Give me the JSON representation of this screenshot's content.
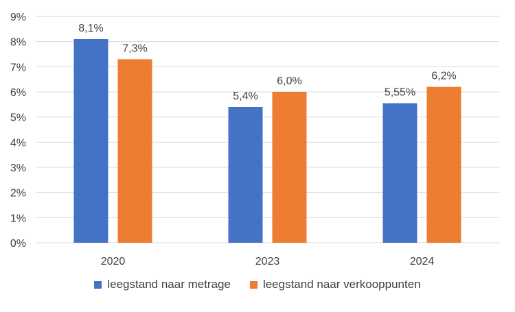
{
  "chart_data": {
    "type": "bar",
    "categories": [
      "2020",
      "2023",
      "2024"
    ],
    "series": [
      {
        "name": "leegstand naar metrage",
        "values": [
          8.1,
          5.4,
          5.55
        ],
        "labels": [
          "8,1%",
          "5,4%",
          "5,55%"
        ],
        "color": "#4472C4"
      },
      {
        "name": "leegstand naar verkooppunten",
        "values": [
          7.3,
          6.0,
          6.2
        ],
        "labels": [
          "7,3%",
          "6,0%",
          "6,2%"
        ],
        "color": "#ED7D31"
      }
    ],
    "ylim": [
      0,
      9
    ],
    "yticks": [
      0,
      1,
      2,
      3,
      4,
      5,
      6,
      7,
      8,
      9
    ],
    "ytick_labels": [
      "0%",
      "1%",
      "2%",
      "3%",
      "4%",
      "5%",
      "6%",
      "7%",
      "8%",
      "9%"
    ],
    "grid": true,
    "legend_position": "bottom",
    "gridline_color": "#D9D9D9"
  }
}
